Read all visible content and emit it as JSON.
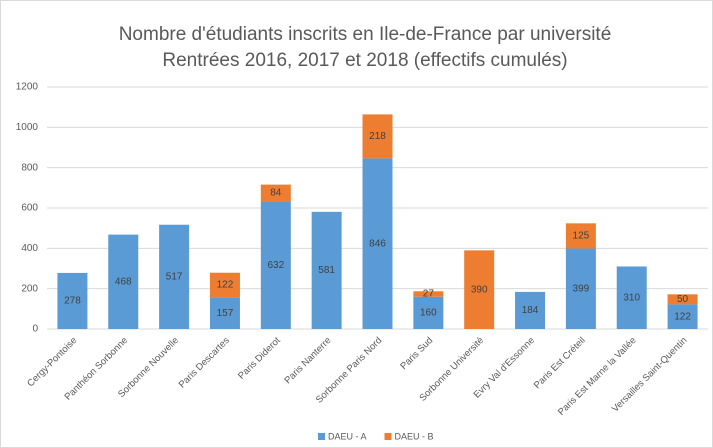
{
  "chart_data": {
    "type": "stacked_bar",
    "title": "Nombre d'étudiants inscrits en Ile-de-France par université",
    "subtitle": "Rentrées 2016, 2017 et 2018 (effectifs cumulés)",
    "categories": [
      "Cergy-Pontoise",
      "Panthéon Sorbonne",
      "Sorbonne Nouvelle",
      "Paris Descartes",
      "Paris Diderot",
      "Paris Nanterre",
      "Sorbonne Paris Nord",
      "Paris Sud",
      "Sorbonne Université",
      "Evry Val d'Essonne",
      "Paris Est Créteil",
      "Paris Est Marne la Vallée",
      "Versailles Saint-Quentin"
    ],
    "series": [
      {
        "name": "DAEU - A",
        "color": "#5b9bd5",
        "values": [
          278,
          468,
          517,
          157,
          632,
          581,
          846,
          160,
          null,
          184,
          399,
          310,
          122
        ]
      },
      {
        "name": "DAEU - B",
        "color": "#ed7d31",
        "values": [
          null,
          null,
          null,
          122,
          84,
          null,
          218,
          27,
          390,
          null,
          125,
          null,
          50
        ]
      }
    ],
    "ylim": [
      0,
      1200
    ],
    "yticks": [
      0,
      200,
      400,
      600,
      800,
      1000,
      1200
    ],
    "grid": true,
    "legend": "bottom"
  }
}
